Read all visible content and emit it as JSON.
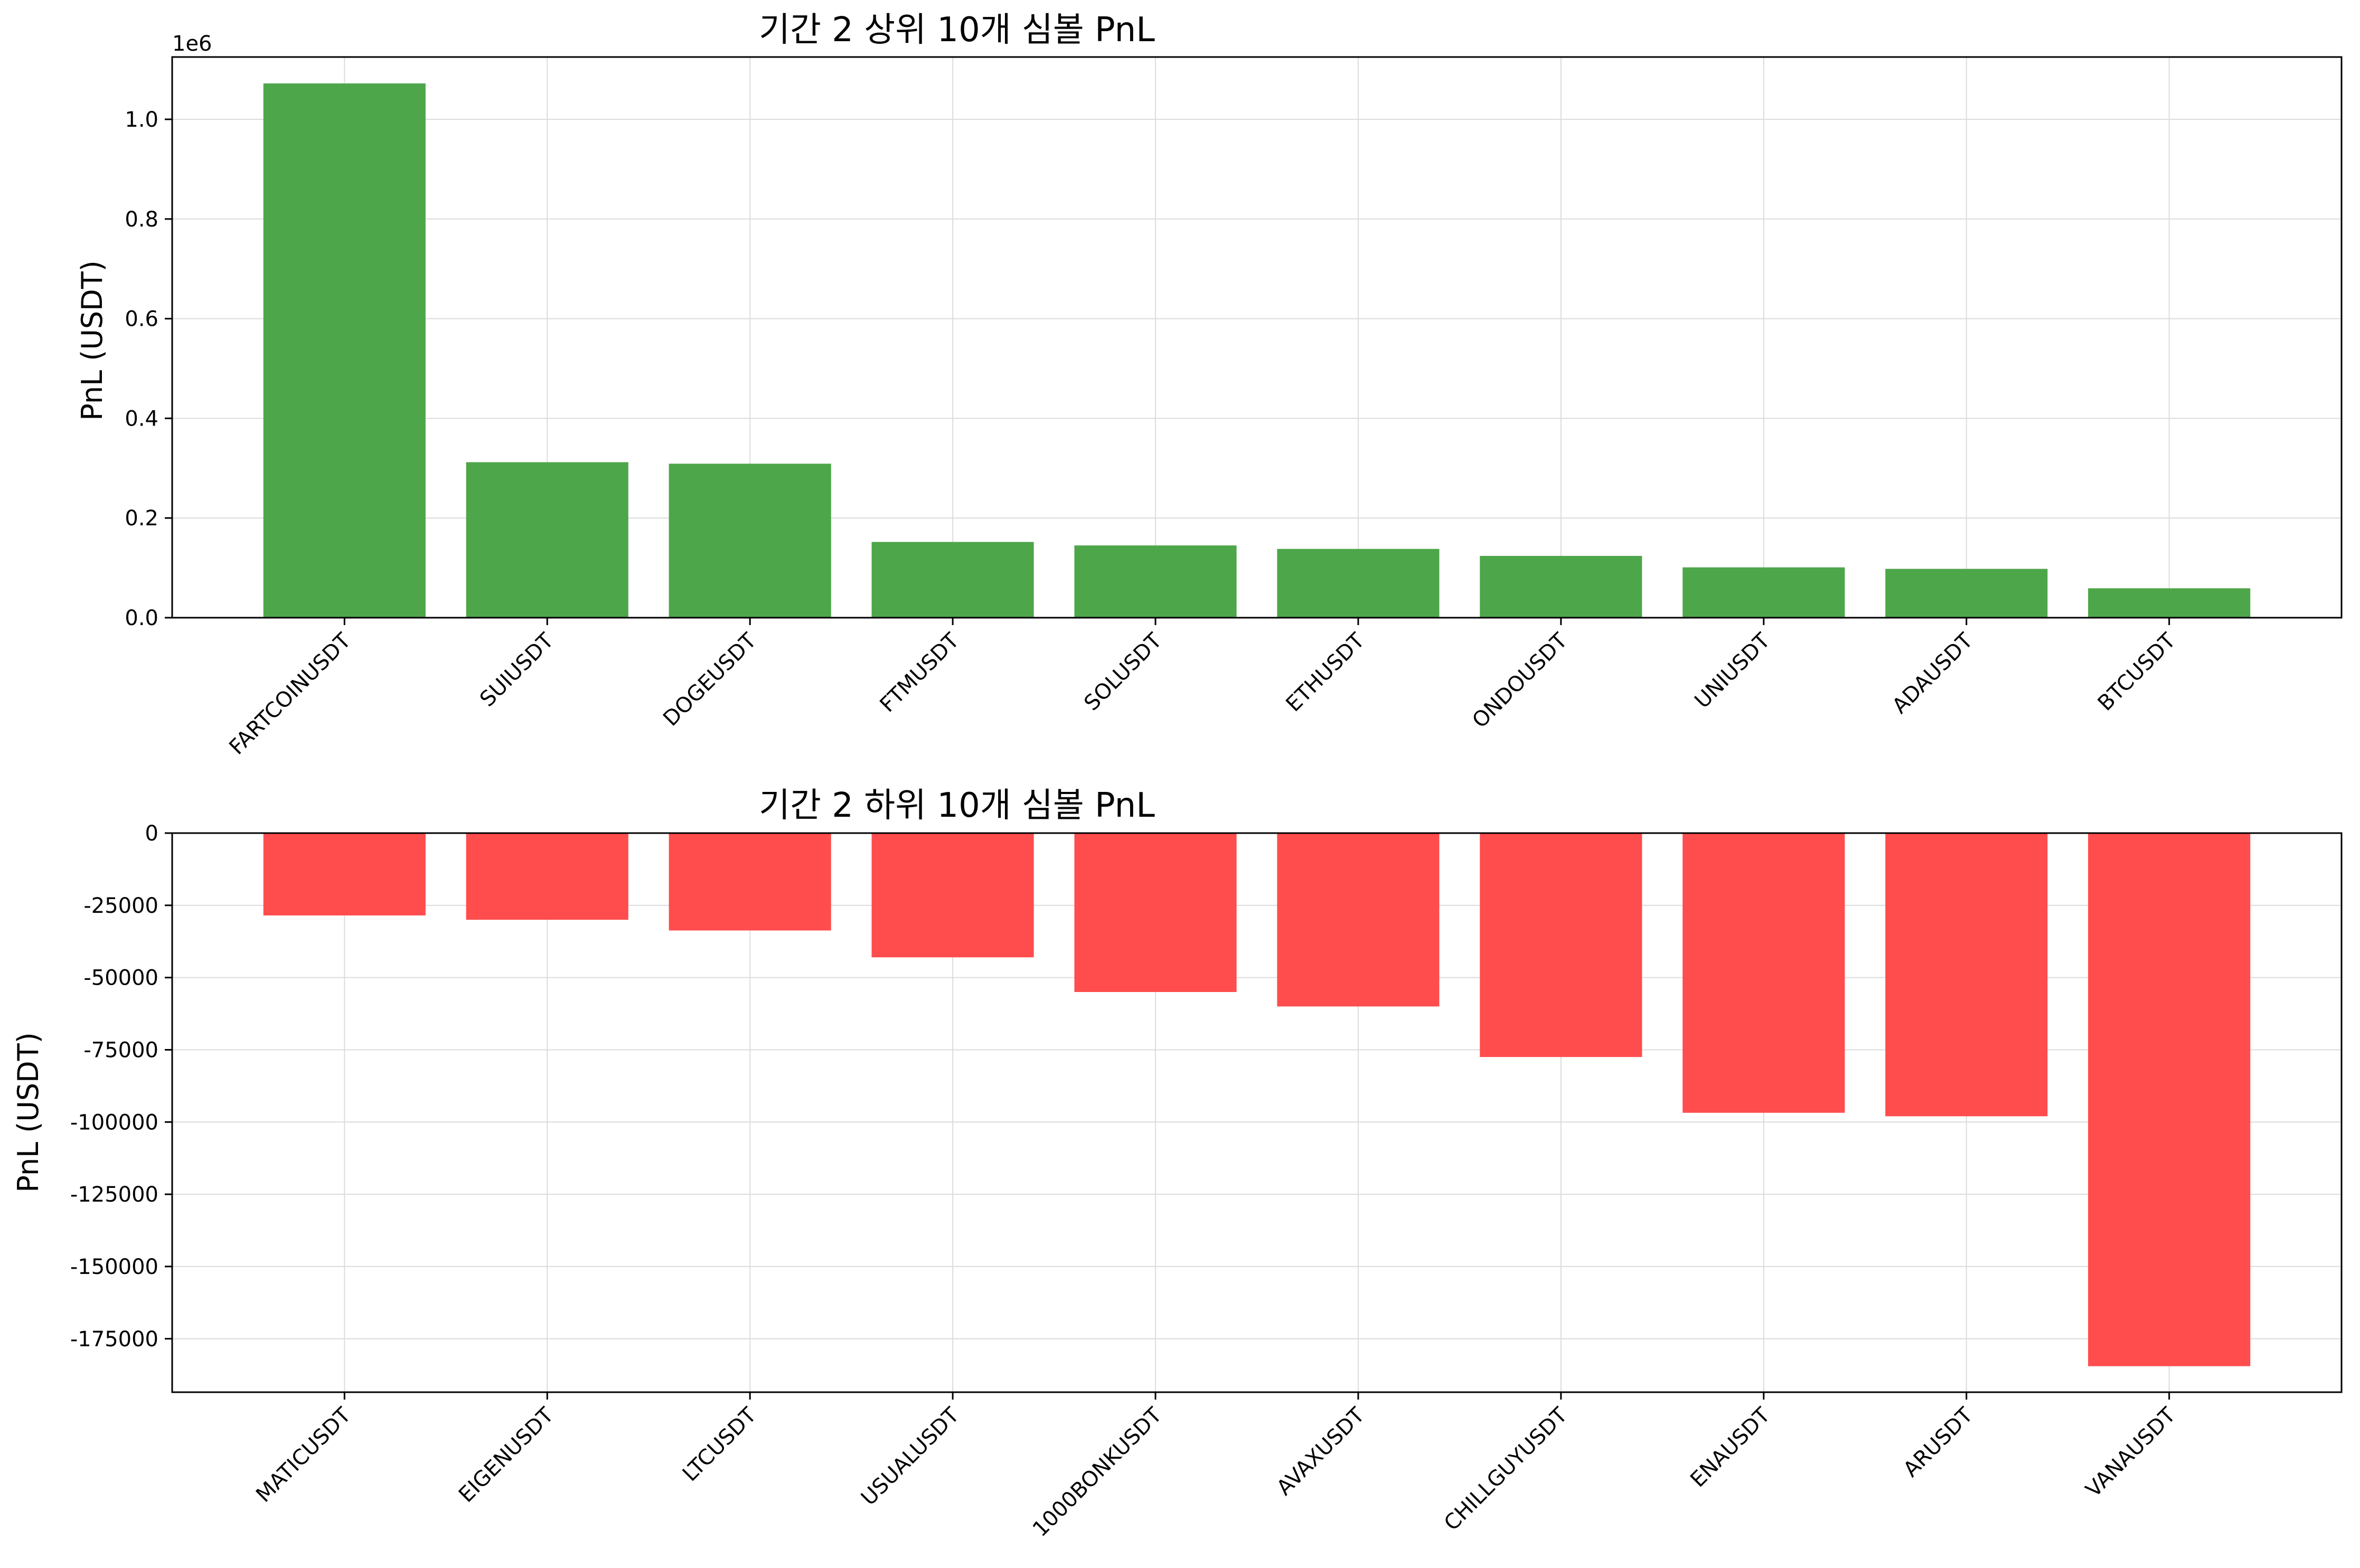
{
  "chart_data": [
    {
      "type": "bar",
      "title": "기간 2 상위 10개 심볼 PnL",
      "xlabel": "",
      "ylabel": "PnL (USDT)",
      "y_offset_label": "1e6",
      "y_scale": 1000000,
      "categories": [
        "FARTCOINUSDT",
        "SUIUSDT",
        "DOGEUSDT",
        "FTMUSDT",
        "SOLUSDT",
        "ETHUSDT",
        "ONDOUSDT",
        "UNIUSDT",
        "ADAUSDT",
        "BTCUSDT"
      ],
      "values": [
        1072000,
        312000,
        309000,
        152000,
        145000,
        138000,
        124000,
        101000,
        98000,
        59000
      ],
      "ylim": [
        0,
        1125000
      ],
      "yticks": [
        0,
        200000,
        400000,
        600000,
        800000,
        1000000
      ],
      "ytick_labels": [
        "0.0",
        "0.2",
        "0.4",
        "0.6",
        "0.8",
        "1.0"
      ],
      "grid": true,
      "bar_color": "#4ea64a"
    },
    {
      "type": "bar",
      "title": "기간 2 하위 10개 심볼 PnL",
      "xlabel": "",
      "ylabel": "PnL (USDT)",
      "categories": [
        "MATICUSDT",
        "EIGENUSDT",
        "LTCUSDT",
        "USUALUSDT",
        "1000BONKUSDT",
        "AVAXUSDT",
        "CHILLGUYUSDT",
        "ENAUSDT",
        "ARUSDT",
        "VANAUSDT"
      ],
      "values": [
        -28500,
        -30000,
        -33700,
        -43000,
        -55000,
        -60000,
        -77500,
        -96800,
        -98000,
        -184500
      ],
      "ylim": [
        -193500,
        0
      ],
      "yticks": [
        0,
        -25000,
        -50000,
        -75000,
        -100000,
        -125000,
        -150000,
        -175000
      ],
      "ytick_labels": [
        "0",
        "-25000",
        "-50000",
        "-75000",
        "-100000",
        "-125000",
        "-150000",
        "-175000"
      ],
      "grid": true,
      "bar_color": "#ff4d4d"
    }
  ]
}
